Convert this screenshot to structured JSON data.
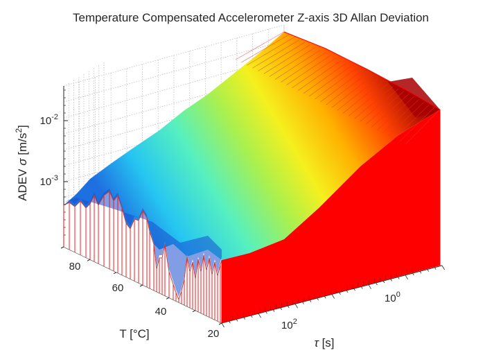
{
  "chart_data": {
    "type": "surface",
    "title": "Temperature Compensated Accelerometer Z-axis 3D Allan Deviation",
    "z_axis": {
      "label_prefix": "ADEV ",
      "label_symbol": "σ",
      "label_units": " [m/s",
      "label_units_sup": "2",
      "label_close": "]",
      "scale": "log",
      "ticks": [
        {
          "base": "10",
          "exp": "-3"
        },
        {
          "base": "10",
          "exp": "-2"
        }
      ]
    },
    "t_axis": {
      "label": "T [°C]",
      "ticks": [
        "20",
        "40",
        "60",
        "80"
      ]
    },
    "tau_axis": {
      "label_symbol": "τ",
      "label_units": " [s]",
      "scale": "log",
      "ticks": [
        {
          "base": "10",
          "exp": "0"
        },
        {
          "base": "10",
          "exp": "2"
        }
      ]
    },
    "colormap": "jet",
    "edge_color": "#ff0000",
    "grid": true
  }
}
